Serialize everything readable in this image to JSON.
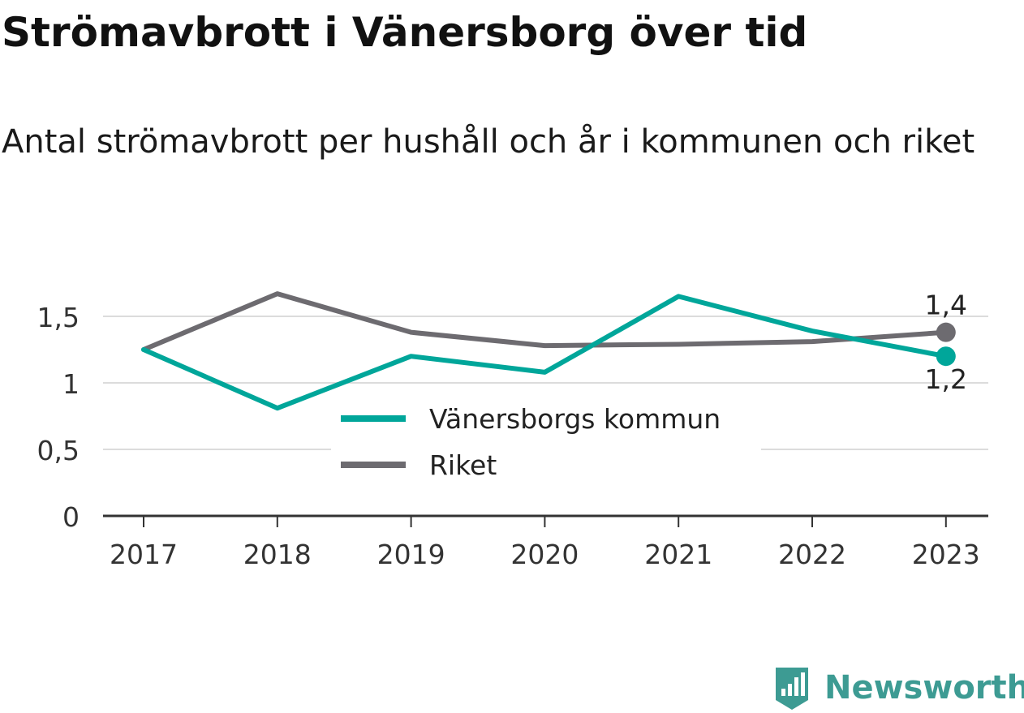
{
  "title": "Strömavbrott i Vänersborg över tid",
  "subtitle": "Antal strömavbrott per hushåll och år i kommunen och riket",
  "brand": {
    "name": "Newsworthy",
    "icon": "newsworthy-logo-icon",
    "color": "#3d9b93"
  },
  "chart_data": {
    "type": "line",
    "x": [
      "2017",
      "2018",
      "2019",
      "2020",
      "2021",
      "2022",
      "2023"
    ],
    "y_ticks": [
      "0",
      "0,5",
      "1",
      "1,5"
    ],
    "y_tick_values": [
      0,
      0.5,
      1,
      1.5
    ],
    "ylim": [
      0,
      1.8
    ],
    "grid": true,
    "legend_placement": "center",
    "series": [
      {
        "name": "Vänersborgs kommun",
        "color": "#00a69a",
        "values": [
          1.25,
          0.81,
          1.2,
          1.08,
          1.65,
          1.39,
          1.2
        ],
        "end_label": "1,2"
      },
      {
        "name": "Riket",
        "color": "#6d6b70",
        "values": [
          1.25,
          1.67,
          1.38,
          1.28,
          1.29,
          1.31,
          1.38
        ],
        "end_label": "1,4"
      }
    ]
  }
}
